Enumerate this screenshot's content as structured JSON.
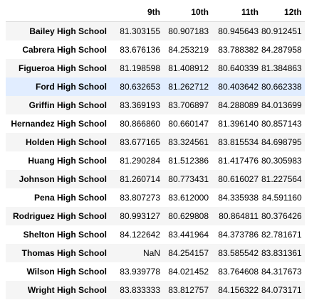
{
  "table": {
    "columns": [
      "9th",
      "10th",
      "11th",
      "12th"
    ],
    "highlighted_row": 3,
    "rows": [
      {
        "school": "Bailey High School",
        "values": [
          "81.303155",
          "80.907183",
          "80.945643",
          "80.912451"
        ]
      },
      {
        "school": "Cabrera High School",
        "values": [
          "83.676136",
          "84.253219",
          "83.788382",
          "84.287958"
        ]
      },
      {
        "school": "Figueroa High School",
        "values": [
          "81.198598",
          "81.408912",
          "80.640339",
          "81.384863"
        ]
      },
      {
        "school": "Ford High School",
        "values": [
          "80.632653",
          "81.262712",
          "80.403642",
          "80.662338"
        ]
      },
      {
        "school": "Griffin High School",
        "values": [
          "83.369193",
          "83.706897",
          "84.288089",
          "84.013699"
        ]
      },
      {
        "school": "Hernandez High School",
        "values": [
          "80.866860",
          "80.660147",
          "81.396140",
          "80.857143"
        ]
      },
      {
        "school": "Holden High School",
        "values": [
          "83.677165",
          "83.324561",
          "83.815534",
          "84.698795"
        ]
      },
      {
        "school": "Huang High School",
        "values": [
          "81.290284",
          "81.512386",
          "81.417476",
          "80.305983"
        ]
      },
      {
        "school": "Johnson High School",
        "values": [
          "81.260714",
          "80.773431",
          "80.616027",
          "81.227564"
        ]
      },
      {
        "school": "Pena High School",
        "values": [
          "83.807273",
          "83.612000",
          "84.335938",
          "84.591160"
        ]
      },
      {
        "school": "Rodriguez High School",
        "values": [
          "80.993127",
          "80.629808",
          "80.864811",
          "80.376426"
        ]
      },
      {
        "school": "Shelton High School",
        "values": [
          "84.122642",
          "83.441964",
          "84.373786",
          "82.781671"
        ]
      },
      {
        "school": "Thomas High School",
        "values": [
          "NaN",
          "84.254157",
          "83.585542",
          "83.831361"
        ]
      },
      {
        "school": "Wilson High School",
        "values": [
          "83.939778",
          "84.021452",
          "83.764608",
          "84.317673"
        ]
      },
      {
        "school": "Wright High School",
        "values": [
          "83.833333",
          "83.812757",
          "84.156322",
          "84.073171"
        ]
      }
    ]
  },
  "colors": {
    "stripe": "#f5f5f5",
    "highlight": "#e1edff",
    "header_rule": "#dadada"
  }
}
